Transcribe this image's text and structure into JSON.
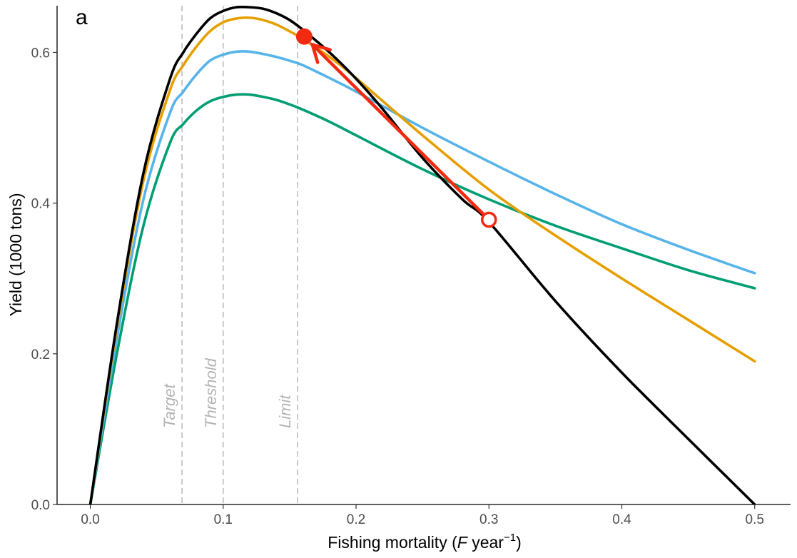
{
  "panel_label": "a",
  "chart_data": {
    "type": "line",
    "xlabel_prefix": "Fishing mortality (",
    "xlabel_var": "F",
    "xlabel_unit": " year",
    "xlabel_exp": "−1",
    "xlabel_suffix": ")",
    "ylabel": "Yield (1000 tons)",
    "xlim": [
      -0.025,
      0.527
    ],
    "ylim": [
      0,
      0.662
    ],
    "xticks": [
      0.0,
      0.1,
      0.2,
      0.3,
      0.4,
      0.5
    ],
    "xtick_labels": [
      "0.0",
      "0.1",
      "0.2",
      "0.3",
      "0.4",
      "0.5"
    ],
    "yticks": [
      0.0,
      0.2,
      0.4,
      0.6
    ],
    "ytick_labels": [
      "0.0",
      "0.2",
      "0.4",
      "0.6"
    ],
    "grid": false,
    "reference_lines": [
      {
        "label": "Target",
        "x": 0.069
      },
      {
        "label": "Threshold",
        "x": 0.1
      },
      {
        "label": "Limit",
        "x": 0.156
      }
    ],
    "series": [
      {
        "color": "#000000",
        "x": [
          0,
          0.02,
          0.04,
          0.06,
          0.07,
          0.08,
          0.09,
          0.1,
          0.11,
          0.12,
          0.13,
          0.14,
          0.15,
          0.16,
          0.18,
          0.2,
          0.22,
          0.25,
          0.28,
          0.3,
          0.35,
          0.4,
          0.45,
          0.5
        ],
        "y": [
          0,
          0.24,
          0.44,
          0.565,
          0.6,
          0.625,
          0.645,
          0.655,
          0.66,
          0.66,
          0.658,
          0.652,
          0.643,
          0.63,
          0.6,
          0.565,
          0.525,
          0.46,
          0.405,
          0.375,
          0.27,
          0.175,
          0.087,
          0
        ]
      },
      {
        "color": "#e69f00",
        "x": [
          0,
          0.02,
          0.04,
          0.06,
          0.07,
          0.08,
          0.09,
          0.1,
          0.11,
          0.12,
          0.13,
          0.14,
          0.15,
          0.16,
          0.18,
          0.2,
          0.25,
          0.3,
          0.35,
          0.4,
          0.45,
          0.5
        ],
        "y": [
          0,
          0.235,
          0.43,
          0.55,
          0.583,
          0.608,
          0.628,
          0.64,
          0.645,
          0.646,
          0.643,
          0.637,
          0.628,
          0.618,
          0.594,
          0.566,
          0.49,
          0.418,
          0.357,
          0.3,
          0.245,
          0.19
        ]
      },
      {
        "color": "#56b4e9",
        "x": [
          0,
          0.02,
          0.04,
          0.06,
          0.07,
          0.08,
          0.09,
          0.1,
          0.11,
          0.12,
          0.13,
          0.14,
          0.15,
          0.16,
          0.18,
          0.2,
          0.25,
          0.3,
          0.35,
          0.4,
          0.45,
          0.5
        ],
        "y": [
          0,
          0.22,
          0.405,
          0.52,
          0.548,
          0.571,
          0.589,
          0.597,
          0.601,
          0.601,
          0.598,
          0.594,
          0.589,
          0.583,
          0.566,
          0.548,
          0.5,
          0.455,
          0.412,
          0.372,
          0.338,
          0.307
        ]
      },
      {
        "color": "#009e73",
        "x": [
          0,
          0.02,
          0.04,
          0.06,
          0.07,
          0.08,
          0.09,
          0.1,
          0.11,
          0.12,
          0.13,
          0.14,
          0.15,
          0.16,
          0.18,
          0.2,
          0.25,
          0.3,
          0.35,
          0.4,
          0.45,
          0.5
        ],
        "y": [
          0,
          0.2,
          0.37,
          0.48,
          0.505,
          0.523,
          0.535,
          0.541,
          0.544,
          0.544,
          0.541,
          0.537,
          0.531,
          0.524,
          0.508,
          0.49,
          0.445,
          0.405,
          0.37,
          0.34,
          0.311,
          0.287
        ]
      }
    ],
    "points": [
      {
        "x": 0.3,
        "y": 0.378,
        "fill": "open",
        "color": "#f22a10"
      },
      {
        "x": 0.161,
        "y": 0.621,
        "fill": "filled",
        "color": "#f22a10"
      }
    ],
    "arrow": {
      "from": [
        0.3,
        0.378
      ],
      "to": [
        0.161,
        0.621
      ],
      "color": "#f22a10"
    }
  }
}
